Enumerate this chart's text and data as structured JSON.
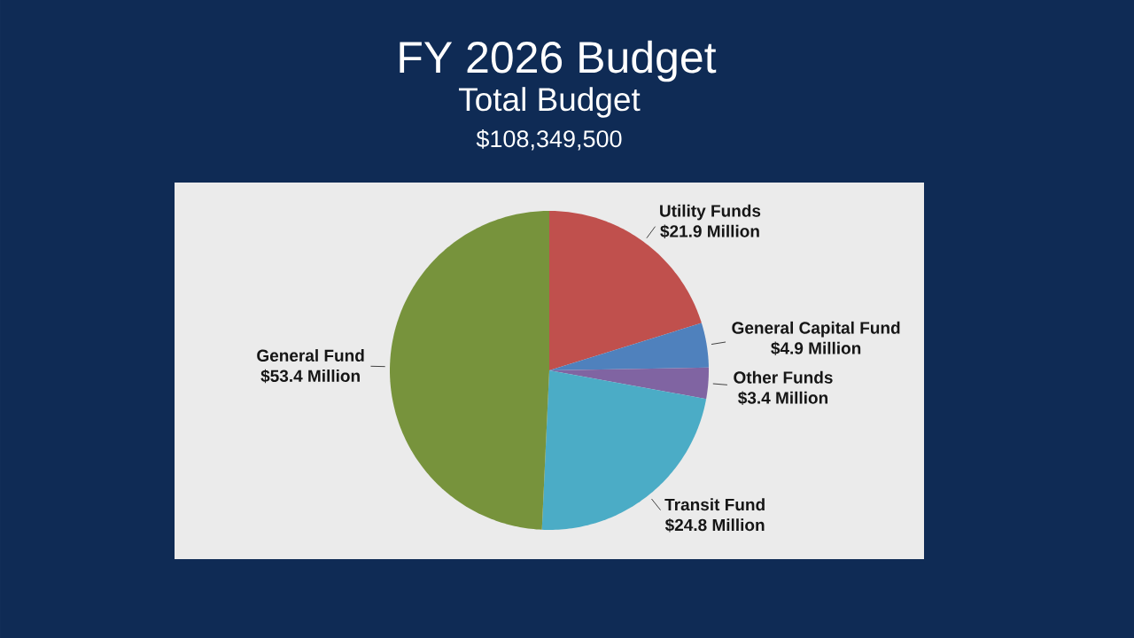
{
  "chart_data": {
    "type": "pie",
    "title": "FY 2026 Budget",
    "subtitle": "Total Budget",
    "annotations": [
      "$108,349,500"
    ],
    "categories": [
      "Utility Funds",
      "General Capital Fund",
      "Other Funds",
      "Transit Fund",
      "General Fund"
    ],
    "values": [
      21.9,
      4.9,
      3.4,
      24.8,
      53.4
    ],
    "value_labels": [
      "$21.9 Million",
      "$4.9 Million",
      "$3.4 Million",
      "$24.8 Million",
      "$53.4 Million"
    ],
    "colors": [
      "#c0504d",
      "#4f81bd",
      "#8064a2",
      "#4bacc6",
      "#77933c"
    ]
  }
}
